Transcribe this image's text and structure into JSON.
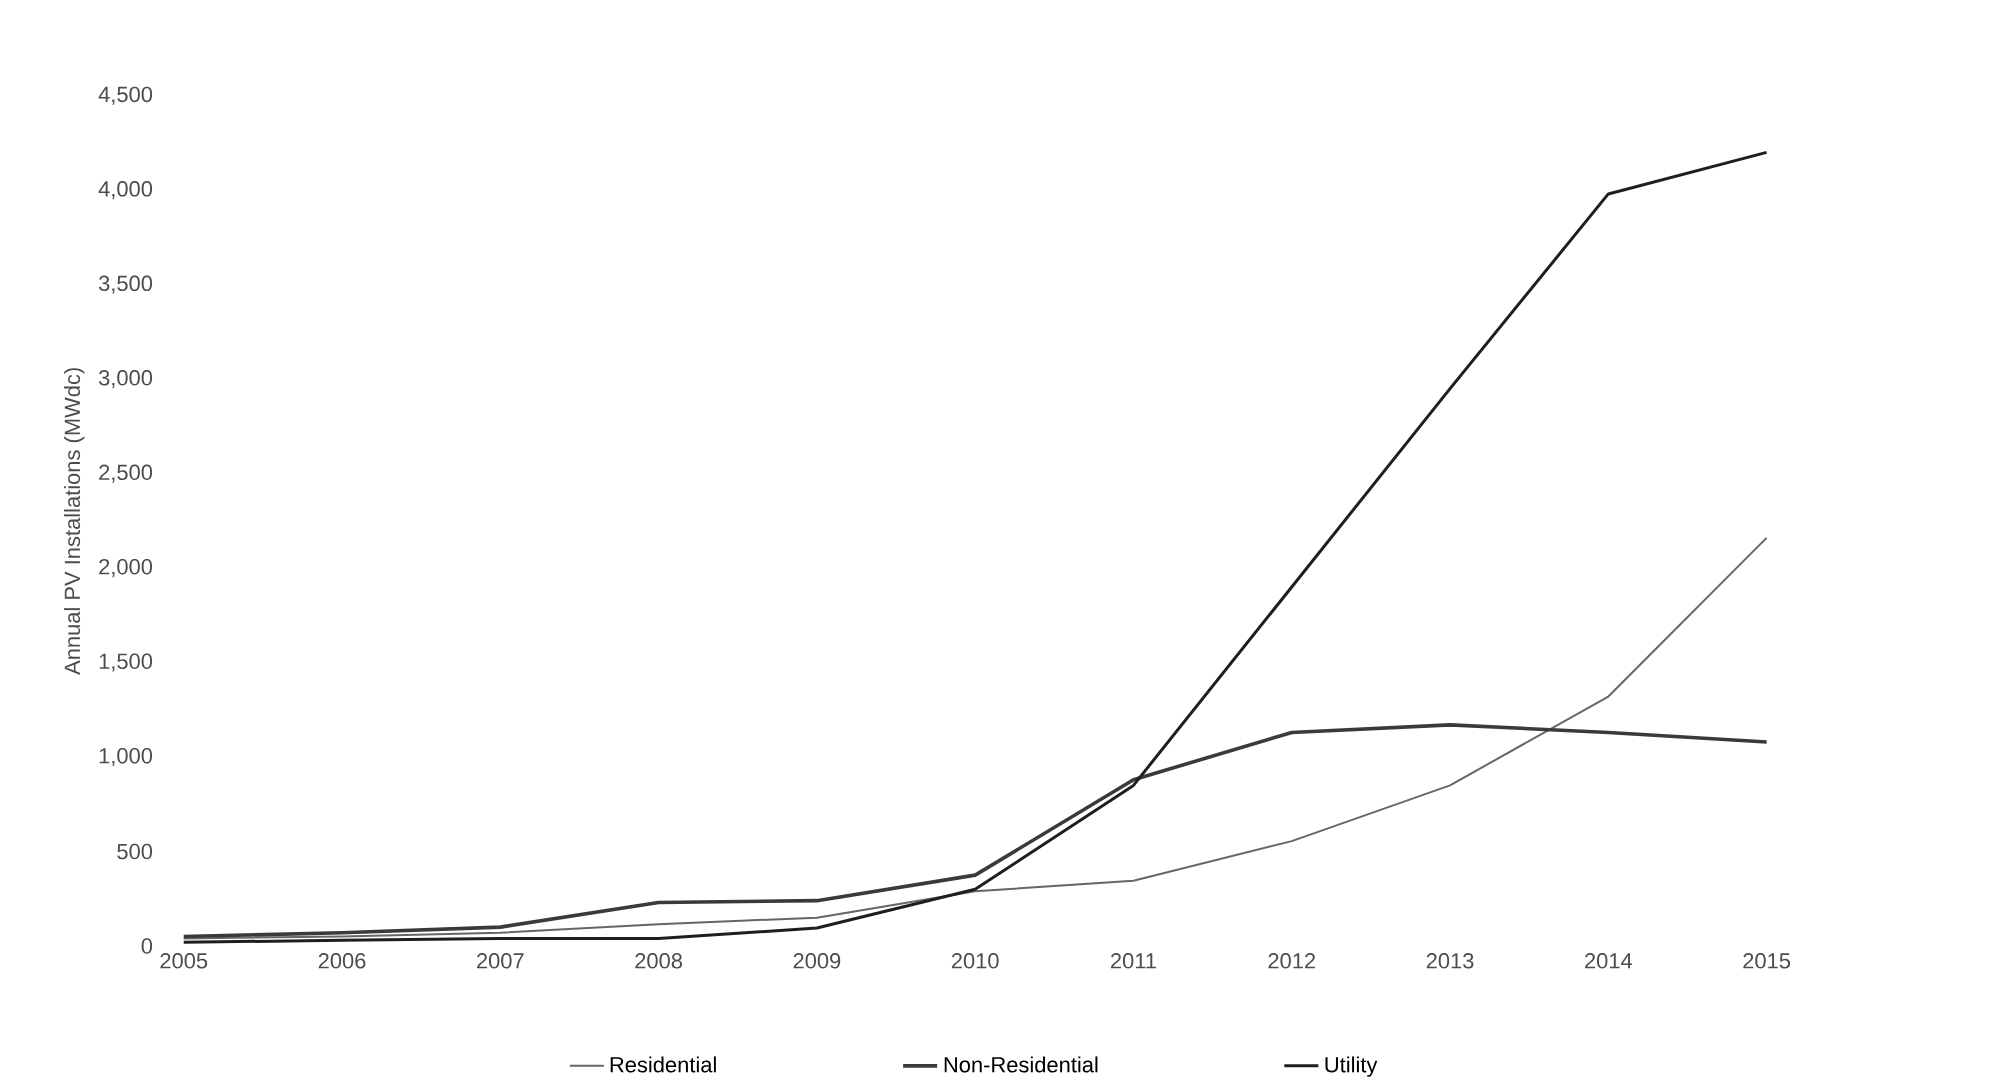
{
  "chart_data": {
    "type": "line",
    "ylabel": "Annual PV Installations (MWdc)",
    "categories": [
      "2005",
      "2006",
      "2007",
      "2008",
      "2009",
      "2010",
      "2011",
      "2012",
      "2013",
      "2014",
      "2015"
    ],
    "series": [
      {
        "name": "Residential",
        "color": "#666666",
        "values": [
          40,
          50,
          70,
          115,
          150,
          290,
          345,
          555,
          850,
          1320,
          2160
        ]
      },
      {
        "name": "Non-Residential",
        "color": "#3a3a3a",
        "values": [
          50,
          70,
          100,
          230,
          240,
          375,
          880,
          1130,
          1170,
          1130,
          1080
        ]
      },
      {
        "name": "Utility",
        "color": "#1e1e1e",
        "values": [
          20,
          30,
          40,
          40,
          95,
          300,
          850,
          1900,
          2950,
          3980,
          4200
        ]
      }
    ],
    "ylim": [
      0,
      4500
    ],
    "yticks": [
      0,
      500,
      {
        "value": 1000,
        "label": "1,000"
      },
      {
        "value": 1500,
        "label": "1,500"
      },
      {
        "value": 2000,
        "label": "2,000"
      },
      {
        "value": 2500,
        "label": "2,500"
      },
      {
        "value": 3000,
        "label": "3,000"
      },
      {
        "value": 3500,
        "label": "3,500"
      },
      {
        "value": 4000,
        "label": "4,000"
      },
      {
        "value": 4500,
        "label": "4,500"
      }
    ],
    "legend": "bottom",
    "marker": "none",
    "line_style": "solid"
  }
}
